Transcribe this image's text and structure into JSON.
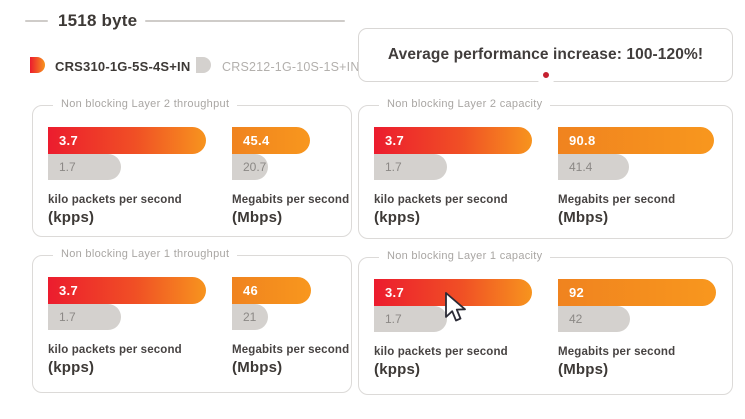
{
  "header": {
    "title": "1518 byte",
    "legend": [
      {
        "label": "CRS310-1G-5S-4S+IN",
        "swatch_color": "gradient #ec1c2e to #f7941e"
      },
      {
        "label": "CRS212-1G-10S-1S+IN",
        "swatch_color": "#d4d1ce"
      }
    ]
  },
  "banner": {
    "text": "Average performance increase: 100-120%!",
    "dot_color": "#c52030"
  },
  "colors": {
    "red": "#ec1c2e",
    "orange": "#f7941e",
    "gray_bar": "#d4d1ce",
    "dark_text": "#3d3936",
    "muted_text": "#a9a6a3",
    "panel_border": "#dcdad8"
  },
  "panels": [
    {
      "title": "Non blocking Layer 2 throughput",
      "groups": [
        {
          "label": "kilo packets per second",
          "abbr": "(kpps)",
          "scale_max": 3.7,
          "bars": [
            {
              "series": "CRS310-1G-5S-4S+IN",
              "value": "3.7",
              "style": "red-orange"
            },
            {
              "series": "CRS212-1G-10S-1S+IN",
              "value": "1.7",
              "style": "gray"
            }
          ]
        },
        {
          "label": "Megabits per second",
          "abbr": "(Mbps)",
          "scale_max": 92,
          "bars": [
            {
              "series": "CRS310-1G-5S-4S+IN",
              "value": "45.4",
              "style": "orange"
            },
            {
              "series": "CRS212-1G-10S-1S+IN",
              "value": "20.7",
              "style": "gray"
            }
          ]
        }
      ]
    },
    {
      "title": "Non blocking Layer 2 capacity",
      "groups": [
        {
          "label": "kilo packets per second",
          "abbr": "(kpps)",
          "scale_max": 3.7,
          "bars": [
            {
              "series": "CRS310-1G-5S-4S+IN",
              "value": "3.7",
              "style": "red-orange"
            },
            {
              "series": "CRS212-1G-10S-1S+IN",
              "value": "1.7",
              "style": "gray"
            }
          ]
        },
        {
          "label": "Megabits per second",
          "abbr": "(Mbps)",
          "scale_max": 92,
          "bars": [
            {
              "series": "CRS310-1G-5S-4S+IN",
              "value": "90.8",
              "style": "orange"
            },
            {
              "series": "CRS212-1G-10S-1S+IN",
              "value": "41.4",
              "style": "gray"
            }
          ]
        }
      ]
    },
    {
      "title": "Non blocking Layer 1 throughput",
      "groups": [
        {
          "label": "kilo packets per second",
          "abbr": "(kpps)",
          "scale_max": 3.7,
          "bars": [
            {
              "series": "CRS310-1G-5S-4S+IN",
              "value": "3.7",
              "style": "red-orange"
            },
            {
              "series": "CRS212-1G-10S-1S+IN",
              "value": "1.7",
              "style": "gray"
            }
          ]
        },
        {
          "label": "Megabits per second",
          "abbr": "(Mbps)",
          "scale_max": 92,
          "bars": [
            {
              "series": "CRS310-1G-5S-4S+IN",
              "value": "46",
              "style": "orange"
            },
            {
              "series": "CRS212-1G-10S-1S+IN",
              "value": "21",
              "style": "gray"
            }
          ]
        }
      ]
    },
    {
      "title": "Non blocking Layer 1 capacity",
      "groups": [
        {
          "label": "kilo packets per second",
          "abbr": "(kpps)",
          "scale_max": 3.7,
          "bars": [
            {
              "series": "CRS310-1G-5S-4S+IN",
              "value": "3.7",
              "style": "red-orange"
            },
            {
              "series": "CRS212-1G-10S-1S+IN",
              "value": "1.7",
              "style": "gray"
            }
          ]
        },
        {
          "label": "Megabits per second",
          "abbr": "(Mbps)",
          "scale_max": 92,
          "bars": [
            {
              "series": "CRS310-1G-5S-4S+IN",
              "value": "92",
              "style": "orange"
            },
            {
              "series": "CRS212-1G-10S-1S+IN",
              "value": "42",
              "style": "gray"
            }
          ]
        }
      ]
    }
  ],
  "chart_data": [
    {
      "type": "bar",
      "title": "Non blocking Layer 2 throughput",
      "categories": [
        "kilo packets per second (kpps)",
        "Megabits per second (Mbps)"
      ],
      "series": [
        {
          "name": "CRS310-1G-5S-4S+IN",
          "values": [
            3.7,
            45.4
          ]
        },
        {
          "name": "CRS212-1G-10S-1S+IN",
          "values": [
            1.7,
            20.7
          ]
        }
      ],
      "legend_position": "top-left",
      "grid": false,
      "orientation": "horizontal"
    },
    {
      "type": "bar",
      "title": "Non blocking Layer 2 capacity",
      "categories": [
        "kilo packets per second (kpps)",
        "Megabits per second (Mbps)"
      ],
      "series": [
        {
          "name": "CRS310-1G-5S-4S+IN",
          "values": [
            3.7,
            90.8
          ]
        },
        {
          "name": "CRS212-1G-10S-1S+IN",
          "values": [
            1.7,
            41.4
          ]
        }
      ],
      "legend_position": "top-left",
      "grid": false,
      "orientation": "horizontal"
    },
    {
      "type": "bar",
      "title": "Non blocking Layer 1 throughput",
      "categories": [
        "kilo packets per second (kpps)",
        "Megabits per second (Mbps)"
      ],
      "series": [
        {
          "name": "CRS310-1G-5S-4S+IN",
          "values": [
            3.7,
            46
          ]
        },
        {
          "name": "CRS212-1G-10S-1S+IN",
          "values": [
            1.7,
            21
          ]
        }
      ],
      "legend_position": "top-left",
      "grid": false,
      "orientation": "horizontal"
    },
    {
      "type": "bar",
      "title": "Non blocking Layer 1 capacity",
      "categories": [
        "kilo packets per second (kpps)",
        "Megabits per second (Mbps)"
      ],
      "series": [
        {
          "name": "CRS310-1G-5S-4S+IN",
          "values": [
            3.7,
            92
          ]
        },
        {
          "name": "CRS212-1G-10S-1S+IN",
          "values": [
            1.7,
            42
          ]
        }
      ],
      "legend_position": "top-left",
      "grid": false,
      "orientation": "horizontal"
    }
  ]
}
